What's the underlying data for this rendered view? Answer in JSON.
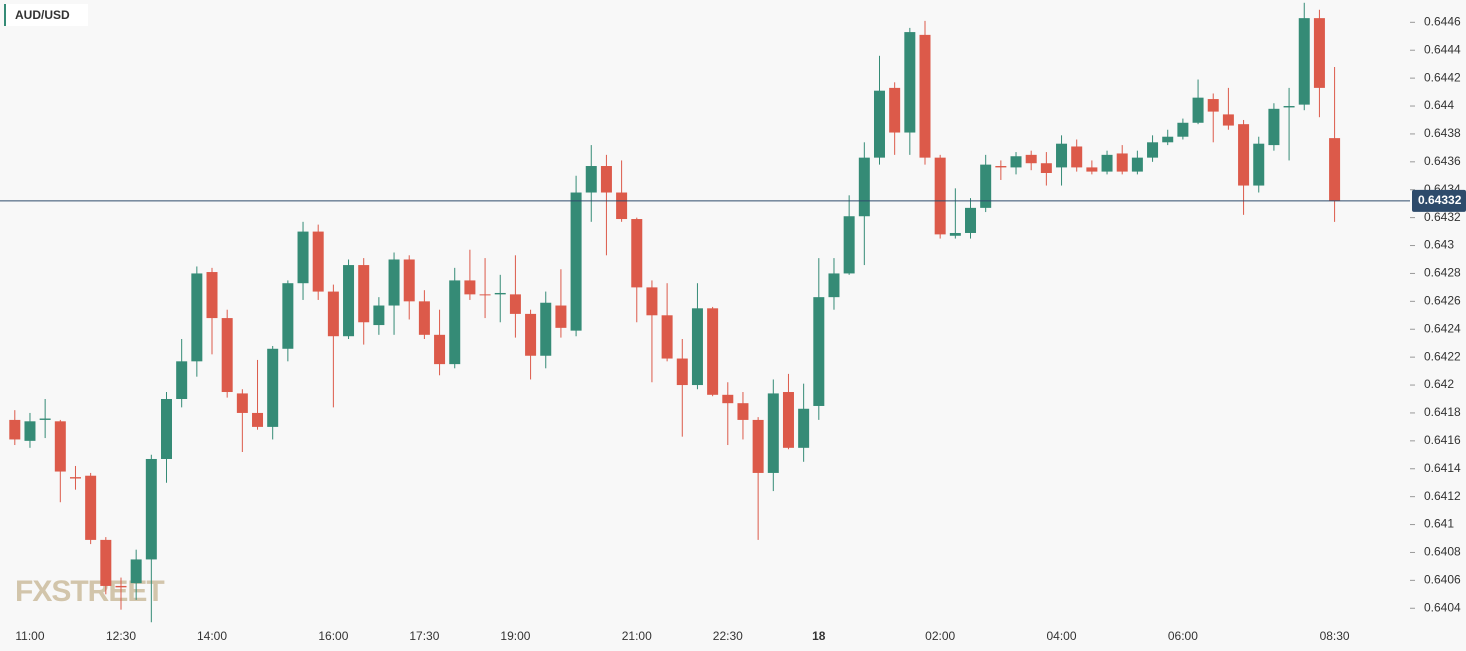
{
  "chart_data": {
    "type": "candlestick",
    "symbol": "AUD/USD",
    "watermark": "FXSTREET",
    "last_price": 0.64332,
    "colors": {
      "up": "#358b76",
      "down": "#dc5a4a",
      "last": "#2e4b6b"
    },
    "categories": [
      null,
      "11:00",
      null,
      null,
      null,
      null,
      null,
      "12:30",
      null,
      null,
      null,
      null,
      null,
      "14:00",
      null,
      null,
      null,
      null,
      null,
      null,
      null,
      "16:00",
      null,
      null,
      null,
      null,
      null,
      "17:30",
      null,
      null,
      null,
      null,
      null,
      "19:00",
      null,
      null,
      null,
      null,
      null,
      null,
      null,
      "21:00",
      null,
      null,
      null,
      null,
      null,
      "22:30",
      null,
      null,
      null,
      null,
      null,
      "18",
      null,
      null,
      null,
      null,
      null,
      null,
      null,
      "02:00",
      null,
      null,
      null,
      null,
      null,
      null,
      null,
      "04:00",
      null,
      null,
      null,
      null,
      null,
      null,
      null,
      "06:00",
      null,
      null,
      null,
      null,
      null,
      null,
      null,
      null,
      null,
      "08:30"
    ],
    "open": [
      0.64175,
      0.6416,
      0.64175,
      0.64174,
      0.64134,
      0.64135,
      0.64089,
      0.64056,
      0.64058,
      0.64075,
      0.64147,
      0.6419,
      0.64217,
      0.64281,
      0.64248,
      0.64194,
      0.6418,
      0.6417,
      0.64226,
      0.64273,
      0.6431,
      0.64267,
      0.64235,
      0.64286,
      0.64243,
      0.64257,
      0.6429,
      0.6426,
      0.64236,
      0.64215,
      0.64275,
      0.64265,
      0.64265,
      0.64265,
      0.64251,
      0.64221,
      0.64257,
      0.64239,
      0.64338,
      0.64357,
      0.64338,
      0.64319,
      0.6427,
      0.6425,
      0.64219,
      0.642,
      0.64255,
      0.64193,
      0.64187,
      0.64175,
      0.64137,
      0.64195,
      0.64155,
      0.64185,
      0.64263,
      0.6428,
      0.64321,
      0.64363,
      0.64413,
      0.64381,
      0.64451,
      0.64363,
      0.64307,
      0.64309,
      0.64327,
      0.64357,
      0.64356,
      0.64365,
      0.64359,
      0.64356,
      0.64371,
      0.64356,
      0.64353,
      0.64366,
      0.64353,
      0.64363,
      0.64374,
      0.64378,
      0.64388,
      0.64405,
      0.64394,
      0.64387,
      0.64343,
      0.64372,
      0.64399,
      0.64401,
      0.64463,
      0.64377
    ],
    "high": [
      0.64182,
      0.6418,
      0.6419,
      0.64175,
      0.64142,
      0.64137,
      0.64091,
      0.64062,
      0.64082,
      0.6415,
      0.64195,
      0.64233,
      0.64285,
      0.64284,
      0.64254,
      0.64197,
      0.64218,
      0.64228,
      0.64275,
      0.64317,
      0.64315,
      0.64272,
      0.6429,
      0.64291,
      0.64263,
      0.64295,
      0.64293,
      0.64268,
      0.64254,
      0.64284,
      0.64297,
      0.64291,
      0.64279,
      0.64293,
      0.64254,
      0.64267,
      0.64283,
      0.6435,
      0.64372,
      0.64365,
      0.64361,
      0.6432,
      0.64275,
      0.64273,
      0.64233,
      0.64273,
      0.64256,
      0.64202,
      0.64195,
      0.64177,
      0.64204,
      0.64208,
      0.64201,
      0.64291,
      0.64291,
      0.64336,
      0.64374,
      0.64436,
      0.64417,
      0.64456,
      0.64461,
      0.64365,
      0.64341,
      0.64334,
      0.64365,
      0.64361,
      0.64367,
      0.64368,
      0.64367,
      0.64379,
      0.64376,
      0.64361,
      0.64368,
      0.64372,
      0.64368,
      0.64379,
      0.64383,
      0.64391,
      0.64419,
      0.64409,
      0.64413,
      0.6439,
      0.64378,
      0.64402,
      0.64413,
      0.64474,
      0.64469,
      0.64428
    ],
    "low": [
      0.64157,
      0.64155,
      0.64162,
      0.64116,
      0.64125,
      0.64086,
      0.6405,
      0.64039,
      0.64046,
      0.6403,
      0.6413,
      0.64184,
      0.64206,
      0.64222,
      0.64191,
      0.64152,
      0.64168,
      0.64161,
      0.64217,
      0.64261,
      0.64261,
      0.64184,
      0.64233,
      0.64229,
      0.64236,
      0.64236,
      0.64247,
      0.64233,
      0.64207,
      0.64212,
      0.64261,
      0.64248,
      0.64245,
      0.64234,
      0.64204,
      0.64212,
      0.64234,
      0.64235,
      0.64317,
      0.64293,
      0.64317,
      0.64245,
      0.64202,
      0.64217,
      0.64163,
      0.64197,
      0.64192,
      0.64157,
      0.64161,
      0.64089,
      0.64124,
      0.64154,
      0.64145,
      0.64175,
      0.64254,
      0.64279,
      0.64286,
      0.64358,
      0.64365,
      0.64365,
      0.64358,
      0.64305,
      0.64305,
      0.64305,
      0.64324,
      0.64347,
      0.64351,
      0.64354,
      0.64343,
      0.64343,
      0.64353,
      0.64351,
      0.64351,
      0.64351,
      0.64351,
      0.6436,
      0.64372,
      0.64376,
      0.64387,
      0.64374,
      0.64383,
      0.64322,
      0.64338,
      0.64368,
      0.64361,
      0.64397,
      0.64392,
      0.64317
    ],
    "close": [
      0.64161,
      0.64174,
      0.64176,
      0.64138,
      0.64133,
      0.64089,
      0.64056,
      0.64055,
      0.64075,
      0.64147,
      0.6419,
      0.64217,
      0.6428,
      0.64248,
      0.64195,
      0.6418,
      0.6417,
      0.64226,
      0.64273,
      0.6431,
      0.64267,
      0.64235,
      0.64286,
      0.64245,
      0.64257,
      0.6429,
      0.6426,
      0.64236,
      0.64215,
      0.64275,
      0.64265,
      0.64265,
      0.64266,
      0.64251,
      0.64221,
      0.64259,
      0.64241,
      0.64338,
      0.64357,
      0.64338,
      0.64319,
      0.6427,
      0.6425,
      0.64219,
      0.642,
      0.64255,
      0.64193,
      0.64187,
      0.64175,
      0.64137,
      0.64194,
      0.64155,
      0.64183,
      0.64263,
      0.6428,
      0.64321,
      0.64363,
      0.64411,
      0.64381,
      0.64453,
      0.64363,
      0.64308,
      0.64309,
      0.64327,
      0.64358,
      0.64356,
      0.64364,
      0.64359,
      0.64352,
      0.64373,
      0.64356,
      0.64353,
      0.64365,
      0.64353,
      0.64363,
      0.64374,
      0.64378,
      0.64388,
      0.64406,
      0.64396,
      0.64386,
      0.64343,
      0.64373,
      0.64398,
      0.644,
      0.64463,
      0.64413,
      0.64332
    ],
    "ylim": [
      0.64028,
      0.64476
    ],
    "yticks": [
      0.6404,
      0.6406,
      0.6408,
      0.641,
      0.6412,
      0.6414,
      0.6416,
      0.6418,
      0.642,
      0.6422,
      0.6424,
      0.6426,
      0.6428,
      0.643,
      0.6432,
      0.6434,
      0.6436,
      0.6438,
      0.644,
      0.6442,
      0.6444,
      0.6446
    ]
  }
}
